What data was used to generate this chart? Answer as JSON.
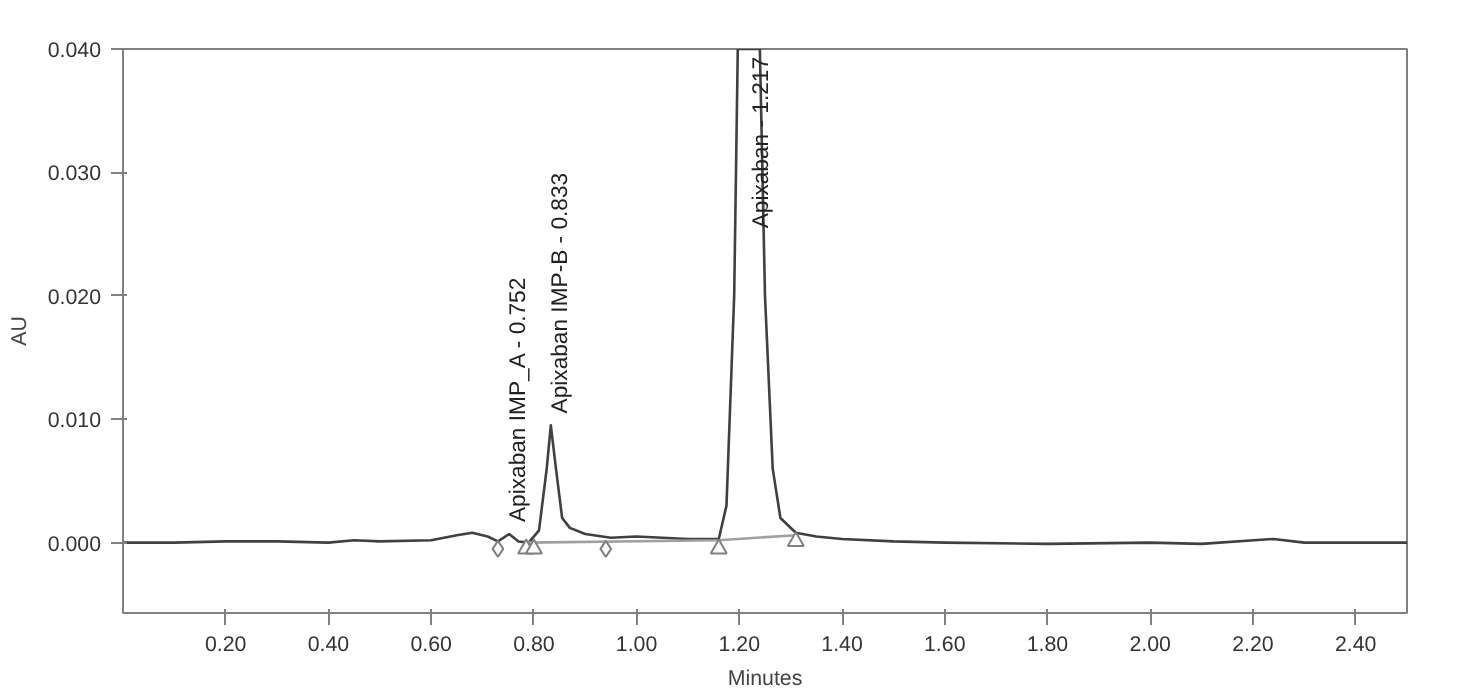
{
  "chart_data": {
    "type": "line",
    "xlabel": "Minutes",
    "ylabel": "AU",
    "xlim": [
      0,
      2.5
    ],
    "ylim": [
      -0.0057,
      0.04
    ],
    "xticks": [
      {
        "value": 0.2,
        "label": "0.20"
      },
      {
        "value": 0.4,
        "label": "0.40"
      },
      {
        "value": 0.6,
        "label": "0.60"
      },
      {
        "value": 0.8,
        "label": "0.80"
      },
      {
        "value": 1.0,
        "label": "1.00"
      },
      {
        "value": 1.2,
        "label": "1.20"
      },
      {
        "value": 1.4,
        "label": "1.40"
      },
      {
        "value": 1.6,
        "label": "1.60"
      },
      {
        "value": 1.8,
        "label": "1.80"
      },
      {
        "value": 2.0,
        "label": "2.00"
      },
      {
        "value": 2.2,
        "label": "2.20"
      },
      {
        "value": 2.4,
        "label": "2.40"
      }
    ],
    "yticks": [
      {
        "value": 0,
        "label": "0.000"
      },
      {
        "value": 0.01,
        "label": "0.010"
      },
      {
        "value": 0.02,
        "label": "0.020"
      },
      {
        "value": 0.03,
        "label": "0.030"
      },
      {
        "value": 0.04,
        "label": "0.040"
      }
    ],
    "grid": false,
    "series": [
      {
        "color": "#404040",
        "marker": "none",
        "x": [
          0,
          0.1,
          0.2,
          0.3,
          0.4,
          0.45,
          0.5,
          0.6,
          0.65,
          0.68,
          0.71,
          0.73,
          0.752,
          0.77,
          0.79,
          0.81,
          0.825,
          0.833,
          0.843,
          0.855,
          0.87,
          0.9,
          0.95,
          1.0,
          1.1,
          1.16,
          1.175,
          1.19,
          1.197,
          1.24,
          1.25,
          1.265,
          1.28,
          1.31,
          1.35,
          1.4,
          1.5,
          1.6,
          1.8,
          2.0,
          2.1,
          2.24,
          2.3,
          2.5
        ],
        "values": [
          0,
          0,
          0.0001,
          0.0001,
          0,
          0.0002,
          0.0001,
          0.0002,
          0.0006,
          0.0008,
          0.0005,
          0.0001,
          0.0007,
          0.0001,
          0,
          0.001,
          0.006,
          0.0095,
          0.006,
          0.002,
          0.0012,
          0.0007,
          0.0004,
          0.0005,
          0.0003,
          0.0003,
          0.003,
          0.02,
          0.04,
          0.04,
          0.02,
          0.006,
          0.002,
          0.0008,
          0.0005,
          0.0003,
          0.0001,
          0,
          -0.0001,
          0,
          -0.0001,
          0.0003,
          0,
          0
        ]
      },
      {
        "type": "line",
        "color": "#a0a0a0",
        "marker": "none",
        "x": [
          0.785,
          1.16,
          1.31
        ],
        "values": [
          0,
          0.0002,
          0.0006
        ]
      },
      {
        "type": "scatter",
        "color": "#808080",
        "marker": "diamond",
        "x": [
          0.73,
          0.94
        ],
        "values": [
          -0.0005,
          -0.0005
        ]
      },
      {
        "type": "scatter",
        "color": "#808080",
        "marker": "triangle",
        "x": [
          0.785,
          0.8,
          1.16,
          1.31
        ],
        "values": [
          -0.0005,
          -0.0005,
          -0.0005,
          0.0001
        ]
      }
    ],
    "annotations": [
      {
        "text": "Apixaban IMP_A - 0.752",
        "x": 0.752,
        "y": 0.0007
      },
      {
        "text": "Apixaban IMP-B - 0.833",
        "x": 0.833,
        "y": 0.0095
      },
      {
        "text": "Apixaban - 1.217",
        "x": 1.217,
        "y": 0.04
      }
    ]
  }
}
